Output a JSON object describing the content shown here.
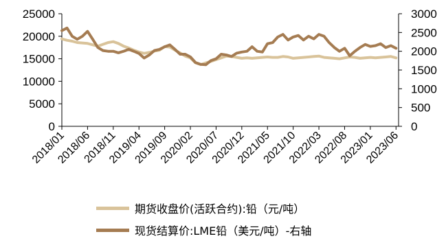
{
  "chart_data": {
    "type": "line",
    "x_ticks": [
      "2018/01",
      "2018/06",
      "2018/11",
      "2019/04",
      "2019/09",
      "2020/02",
      "2020/07",
      "2020/12",
      "2021/05",
      "2021/10",
      "2022/03",
      "2022/08",
      "2023/01",
      "2023/06"
    ],
    "y_left": {
      "range": [
        0,
        25000
      ],
      "ticks": [
        "0",
        "5000",
        "10000",
        "15000",
        "20000",
        "25000"
      ]
    },
    "y_right": {
      "range": [
        0,
        3000
      ],
      "ticks": [
        "0",
        "500",
        "1000",
        "1500",
        "2000",
        "2500",
        "3000"
      ]
    },
    "grid": false,
    "legend_position": "bottom",
    "series": [
      {
        "name": "期货收盘价(活跃合约):铅（元/吨）",
        "axis": "left",
        "color": "#d9c39a",
        "x": [
          "2018/01",
          "2018/02",
          "2018/03",
          "2018/04",
          "2018/05",
          "2018/06",
          "2018/07",
          "2018/08",
          "2018/09",
          "2018/10",
          "2018/11",
          "2018/12",
          "2019/01",
          "2019/02",
          "2019/03",
          "2019/04",
          "2019/05",
          "2019/06",
          "2019/07",
          "2019/08",
          "2019/09",
          "2019/10",
          "2019/11",
          "2019/12",
          "2020/01",
          "2020/02",
          "2020/03",
          "2020/04",
          "2020/05",
          "2020/06",
          "2020/07",
          "2020/08",
          "2020/09",
          "2020/10",
          "2020/11",
          "2020/12",
          "2021/01",
          "2021/02",
          "2021/03",
          "2021/04",
          "2021/05",
          "2021/06",
          "2021/07",
          "2021/08",
          "2021/09",
          "2021/10",
          "2021/11",
          "2021/12",
          "2022/01",
          "2022/02",
          "2022/03",
          "2022/04",
          "2022/05",
          "2022/06",
          "2022/07",
          "2022/08",
          "2022/09",
          "2022/10",
          "2022/11",
          "2022/12",
          "2023/01",
          "2023/02",
          "2023/03",
          "2023/04",
          "2023/05",
          "2023/06"
        ],
        "values": [
          19400,
          19100,
          18900,
          18600,
          18500,
          18400,
          18100,
          17800,
          18200,
          18600,
          18800,
          18400,
          17800,
          17400,
          16900,
          16500,
          16200,
          16400,
          16700,
          16900,
          17700,
          17600,
          16900,
          16300,
          15600,
          15200,
          14100,
          13700,
          14100,
          14400,
          14800,
          15200,
          15600,
          15500,
          15300,
          15100,
          15200,
          15100,
          15200,
          15300,
          15400,
          15300,
          15300,
          15500,
          15400,
          15100,
          15200,
          15300,
          15400,
          15500,
          15600,
          15300,
          15200,
          15100,
          15000,
          15200,
          15400,
          15300,
          15100,
          15200,
          15300,
          15200,
          15300,
          15400,
          15500,
          15200
        ]
      },
      {
        "name": "现货结算价:LME铅（美元/吨）-右轴",
        "axis": "right",
        "color": "#a57c52",
        "x": [
          "2018/01",
          "2018/02",
          "2018/03",
          "2018/04",
          "2018/05",
          "2018/06",
          "2018/07",
          "2018/08",
          "2018/09",
          "2018/10",
          "2018/11",
          "2018/12",
          "2019/01",
          "2019/02",
          "2019/03",
          "2019/04",
          "2019/05",
          "2019/06",
          "2019/07",
          "2019/08",
          "2019/09",
          "2019/10",
          "2019/11",
          "2019/12",
          "2020/01",
          "2020/02",
          "2020/03",
          "2020/04",
          "2020/05",
          "2020/06",
          "2020/07",
          "2020/08",
          "2020/09",
          "2020/10",
          "2020/11",
          "2020/12",
          "2021/01",
          "2021/02",
          "2021/03",
          "2021/04",
          "2021/05",
          "2021/06",
          "2021/07",
          "2021/08",
          "2021/09",
          "2021/10",
          "2021/11",
          "2021/12",
          "2022/01",
          "2022/02",
          "2022/03",
          "2022/04",
          "2022/05",
          "2022/06",
          "2022/07",
          "2022/08",
          "2022/09",
          "2022/10",
          "2022/11",
          "2022/12",
          "2023/01",
          "2023/02",
          "2023/03",
          "2023/04",
          "2023/05",
          "2023/06"
        ],
        "values": [
          2550,
          2620,
          2400,
          2320,
          2400,
          2530,
          2320,
          2100,
          2020,
          2000,
          2000,
          1960,
          2000,
          2050,
          2000,
          1940,
          1820,
          1900,
          2020,
          2050,
          2120,
          2170,
          2050,
          1920,
          1920,
          1850,
          1700,
          1650,
          1640,
          1750,
          1800,
          1920,
          1900,
          1860,
          1950,
          1980,
          2000,
          2120,
          2000,
          1980,
          2200,
          2230,
          2380,
          2450,
          2300,
          2380,
          2420,
          2300,
          2400,
          2330,
          2450,
          2400,
          2230,
          2100,
          2000,
          2080,
          1880,
          2000,
          2100,
          2180,
          2130,
          2150,
          2200,
          2100,
          2150,
          2080
        ]
      }
    ]
  }
}
